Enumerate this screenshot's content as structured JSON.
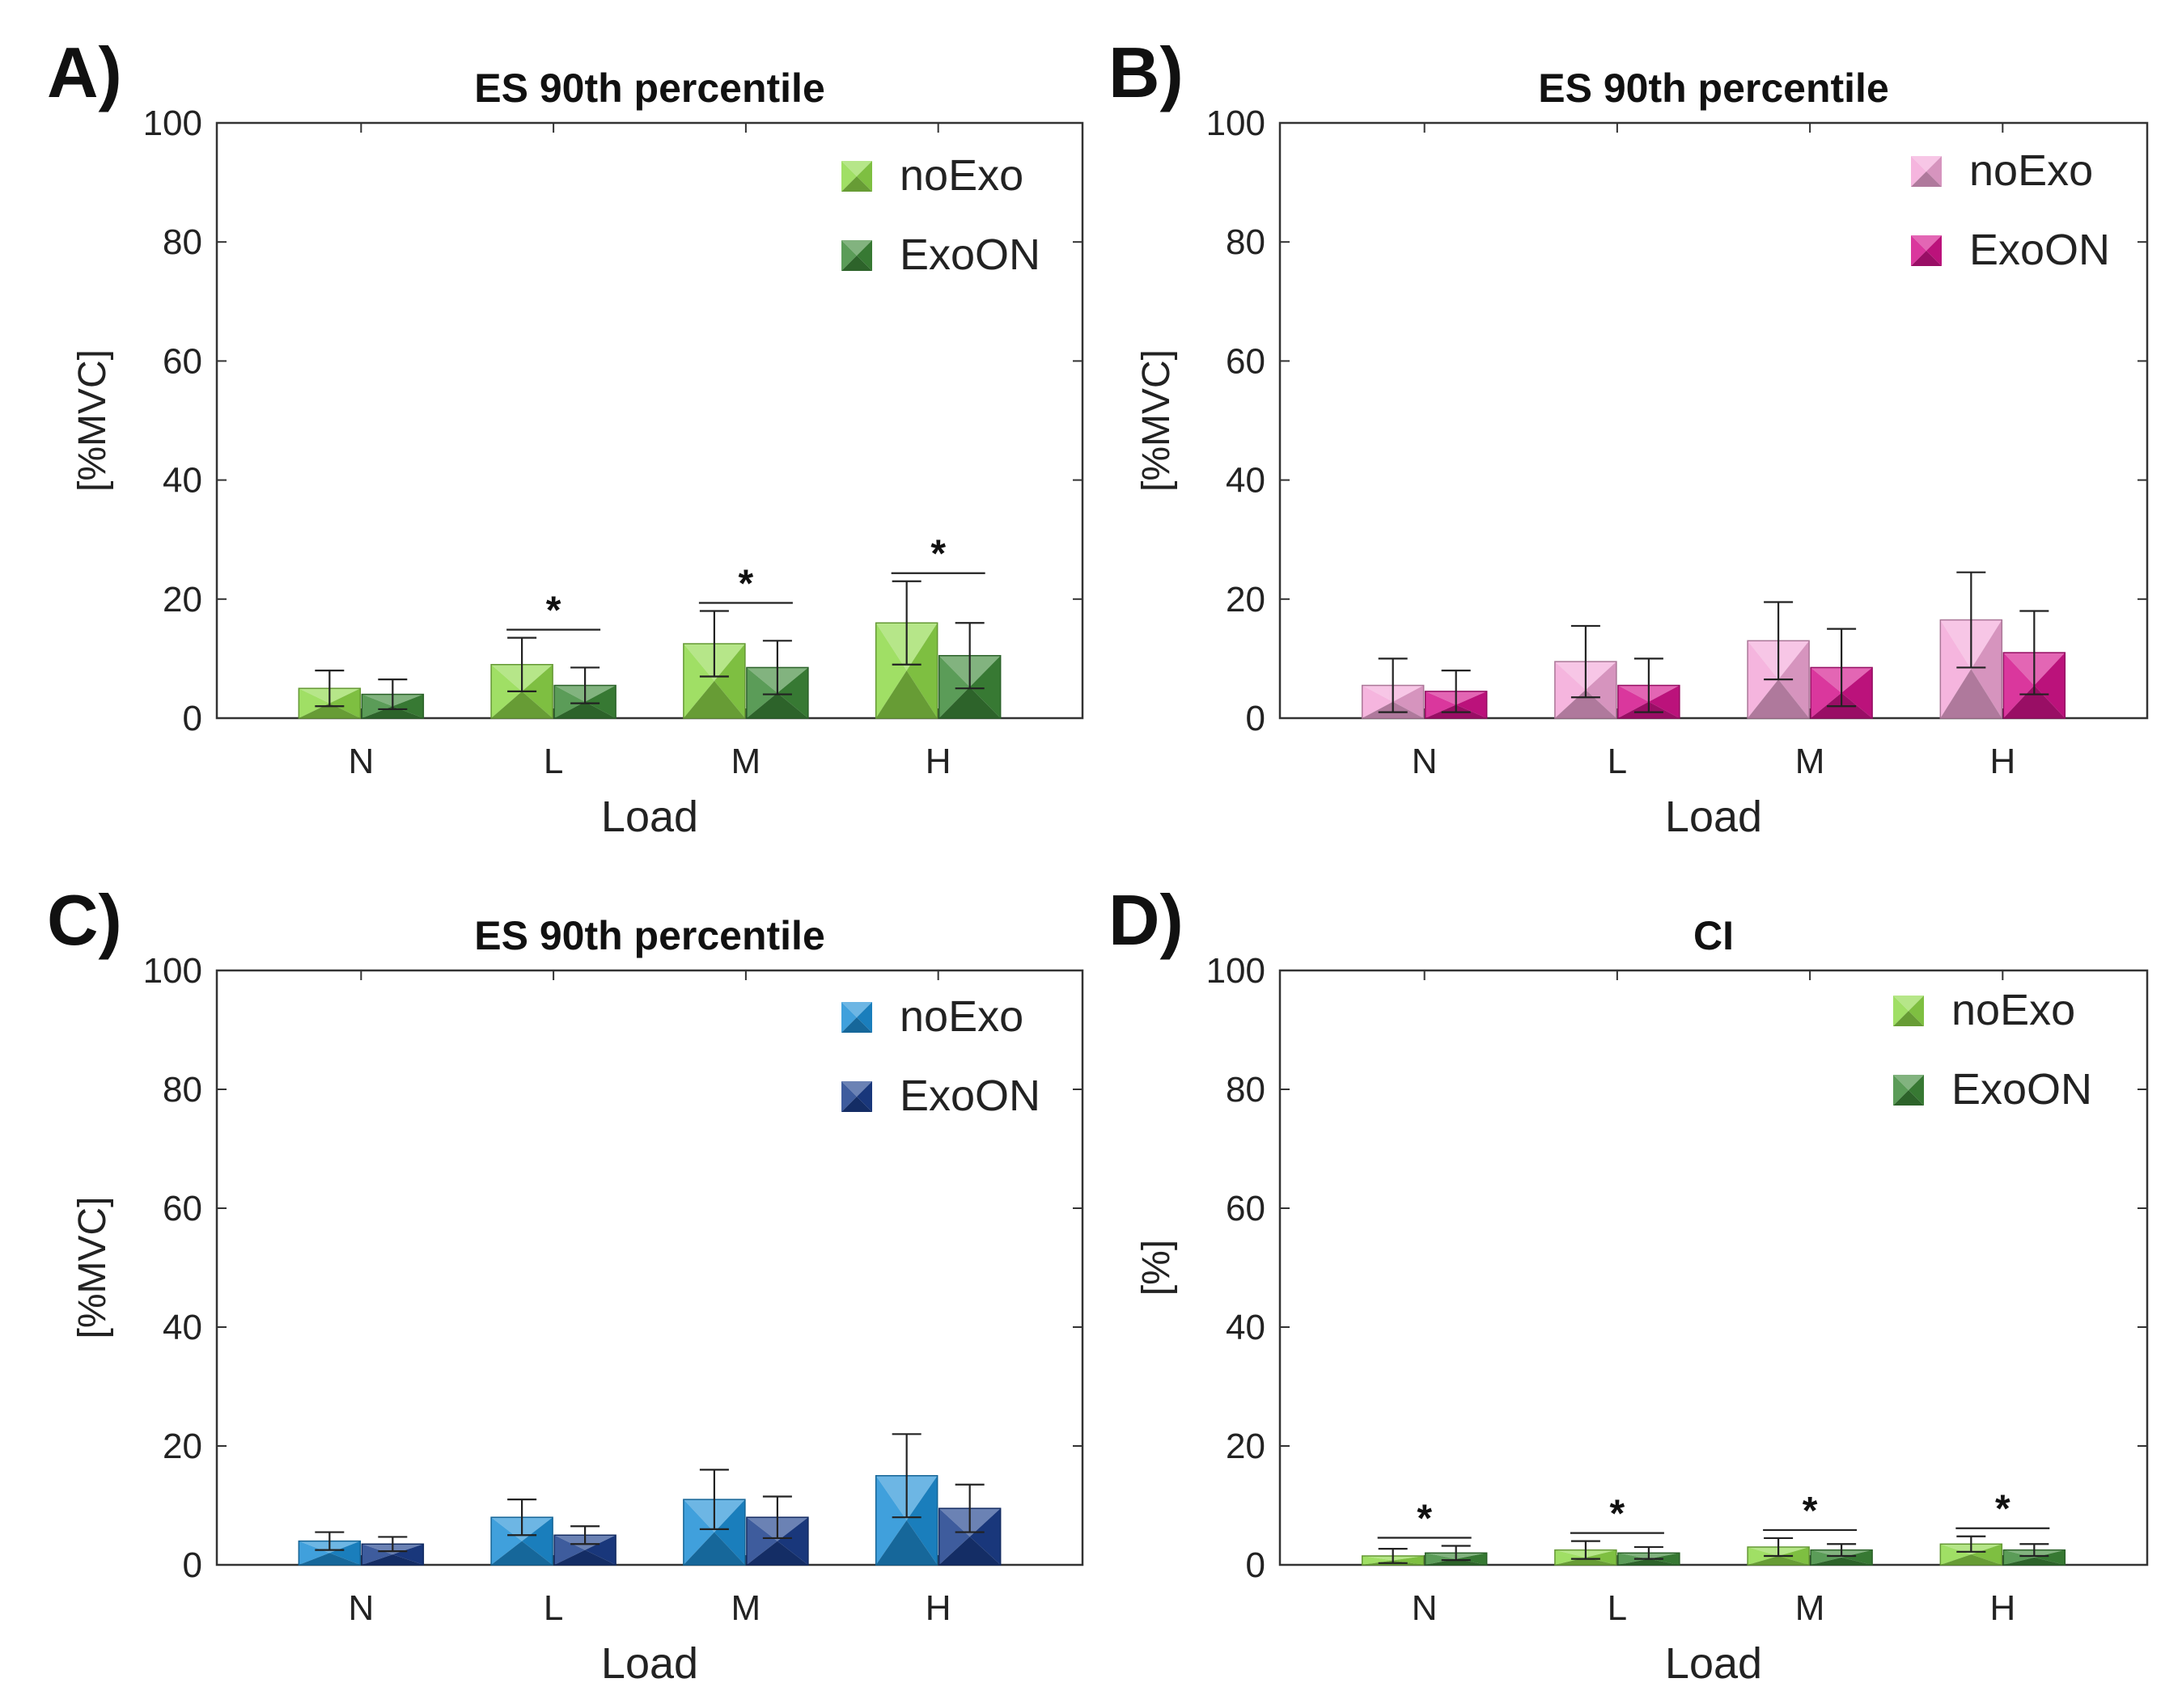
{
  "chart_data": [
    {
      "type": "bar",
      "panel": "A)",
      "title": "ES 90th percentile",
      "xlabel": "Load",
      "ylabel": "[%MVC]",
      "ylim": [
        0,
        100
      ],
      "yticks": [
        "0",
        "20",
        "40",
        "60",
        "80",
        "100"
      ],
      "categories": [
        "N",
        "L",
        "M",
        "H"
      ],
      "legend_position": "top-right",
      "series": [
        {
          "name": "noExo",
          "color": "#8fd94a",
          "values": [
            5,
            9,
            12.5,
            16
          ],
          "err": [
            3,
            4.5,
            5.5,
            7
          ]
        },
        {
          "name": "ExoON",
          "color": "#3e8a3a",
          "values": [
            4,
            5.5,
            8.5,
            10.5
          ],
          "err": [
            2.5,
            3,
            4.5,
            5.5
          ]
        }
      ],
      "significance": [
        "",
        "*",
        "*",
        "*"
      ]
    },
    {
      "type": "bar",
      "panel": "B)",
      "title": "ES 90th percentile",
      "xlabel": "Load",
      "ylabel": "[%MVC]",
      "ylim": [
        0,
        100
      ],
      "yticks": [
        "0",
        "20",
        "40",
        "60",
        "80",
        "100"
      ],
      "categories": [
        "N",
        "L",
        "M",
        "H"
      ],
      "legend_position": "top-right",
      "series": [
        {
          "name": "noExo",
          "color": "#f3a8d8",
          "values": [
            5.5,
            9.5,
            13,
            16.5
          ],
          "err": [
            4.5,
            6,
            6.5,
            8
          ]
        },
        {
          "name": "ExoON",
          "color": "#d4148c",
          "values": [
            4.5,
            5.5,
            8.5,
            11
          ],
          "err": [
            3.5,
            4.5,
            6.5,
            7
          ]
        }
      ],
      "significance": [
        "",
        "",
        "",
        ""
      ]
    },
    {
      "type": "bar",
      "panel": "C)",
      "title": "ES 90th percentile",
      "xlabel": "Load",
      "ylabel": "[%MVC]",
      "ylim": [
        0,
        100
      ],
      "yticks": [
        "0",
        "20",
        "40",
        "60",
        "80",
        "100"
      ],
      "categories": [
        "N",
        "L",
        "M",
        "H"
      ],
      "legend_position": "top-right",
      "series": [
        {
          "name": "noExo",
          "color": "#1e8fd6",
          "values": [
            4,
            8,
            11,
            15
          ],
          "err": [
            1.5,
            3,
            5,
            7
          ]
        },
        {
          "name": "ExoON",
          "color": "#1c3f8c",
          "values": [
            3.5,
            5,
            8,
            9.5
          ],
          "err": [
            1.2,
            1.5,
            3.5,
            4
          ]
        }
      ],
      "significance": [
        "",
        "",
        "",
        ""
      ]
    },
    {
      "type": "bar",
      "panel": "D)",
      "title": "CI",
      "xlabel": "Load",
      "ylabel": "[%]",
      "ylim": [
        0,
        100
      ],
      "yticks": [
        "0",
        "20",
        "40",
        "60",
        "80",
        "100"
      ],
      "categories": [
        "N",
        "L",
        "M",
        "H"
      ],
      "legend_position": "top-right",
      "series": [
        {
          "name": "noExo",
          "color": "#8fd94a",
          "values": [
            1.5,
            2.5,
            3,
            3.5
          ],
          "err": [
            1.2,
            1.5,
            1.5,
            1.3
          ]
        },
        {
          "name": "ExoON",
          "color": "#3e8a3a",
          "values": [
            2,
            2,
            2.5,
            2.5
          ],
          "err": [
            1.2,
            1,
            1,
            1
          ]
        }
      ],
      "significance": [
        "*",
        "*",
        "*",
        "*"
      ]
    }
  ]
}
